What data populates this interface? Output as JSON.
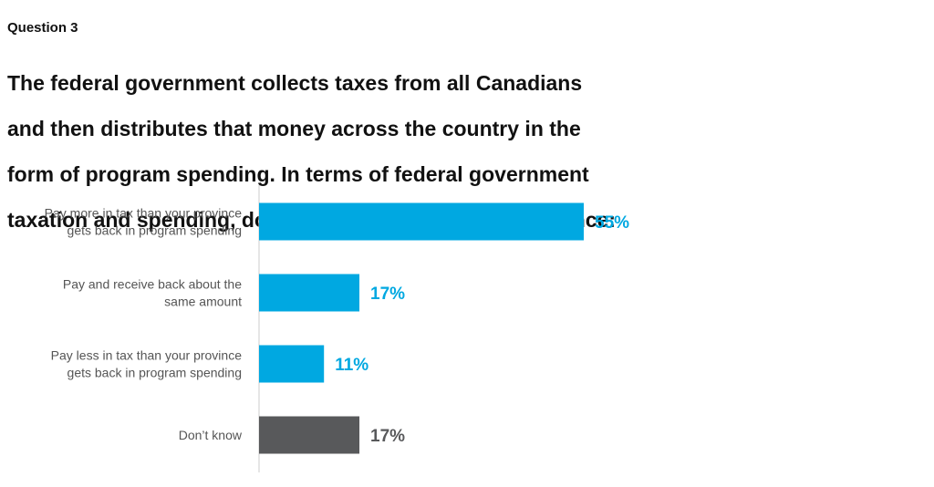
{
  "header": {
    "question": "Question 3",
    "title_lines": [
      "The federal government collects taxes from all Canadians",
      "and then distributes that money across the country in the",
      "form of program spending. In terms of federal government",
      "taxation and spending, do you think people in your province:"
    ]
  },
  "colors": {
    "primary_bar": "#00a8e1",
    "dont_know_bar": "#58595b",
    "axis": "#cccccc"
  },
  "chart_data": {
    "type": "bar",
    "orientation": "horizontal",
    "categories": [
      [
        "Pay more in tax than your province",
        "gets back in program spending"
      ],
      [
        "Pay and receive back about the",
        "same amount"
      ],
      [
        "Pay less in tax than your province",
        "gets back in program spending"
      ],
      [
        "Don’t know"
      ]
    ],
    "values": [
      55,
      17,
      11,
      17
    ],
    "value_labels": [
      "55%",
      "17%",
      "11%",
      "17%"
    ],
    "bar_colors": [
      "#00a8e1",
      "#00a8e1",
      "#00a8e1",
      "#58595b"
    ],
    "label_colors": [
      "#00a8e1",
      "#00a8e1",
      "#00a8e1",
      "#58595b"
    ],
    "unit": "%",
    "xlim": [
      0,
      100
    ],
    "grid": false,
    "legend": "none"
  }
}
